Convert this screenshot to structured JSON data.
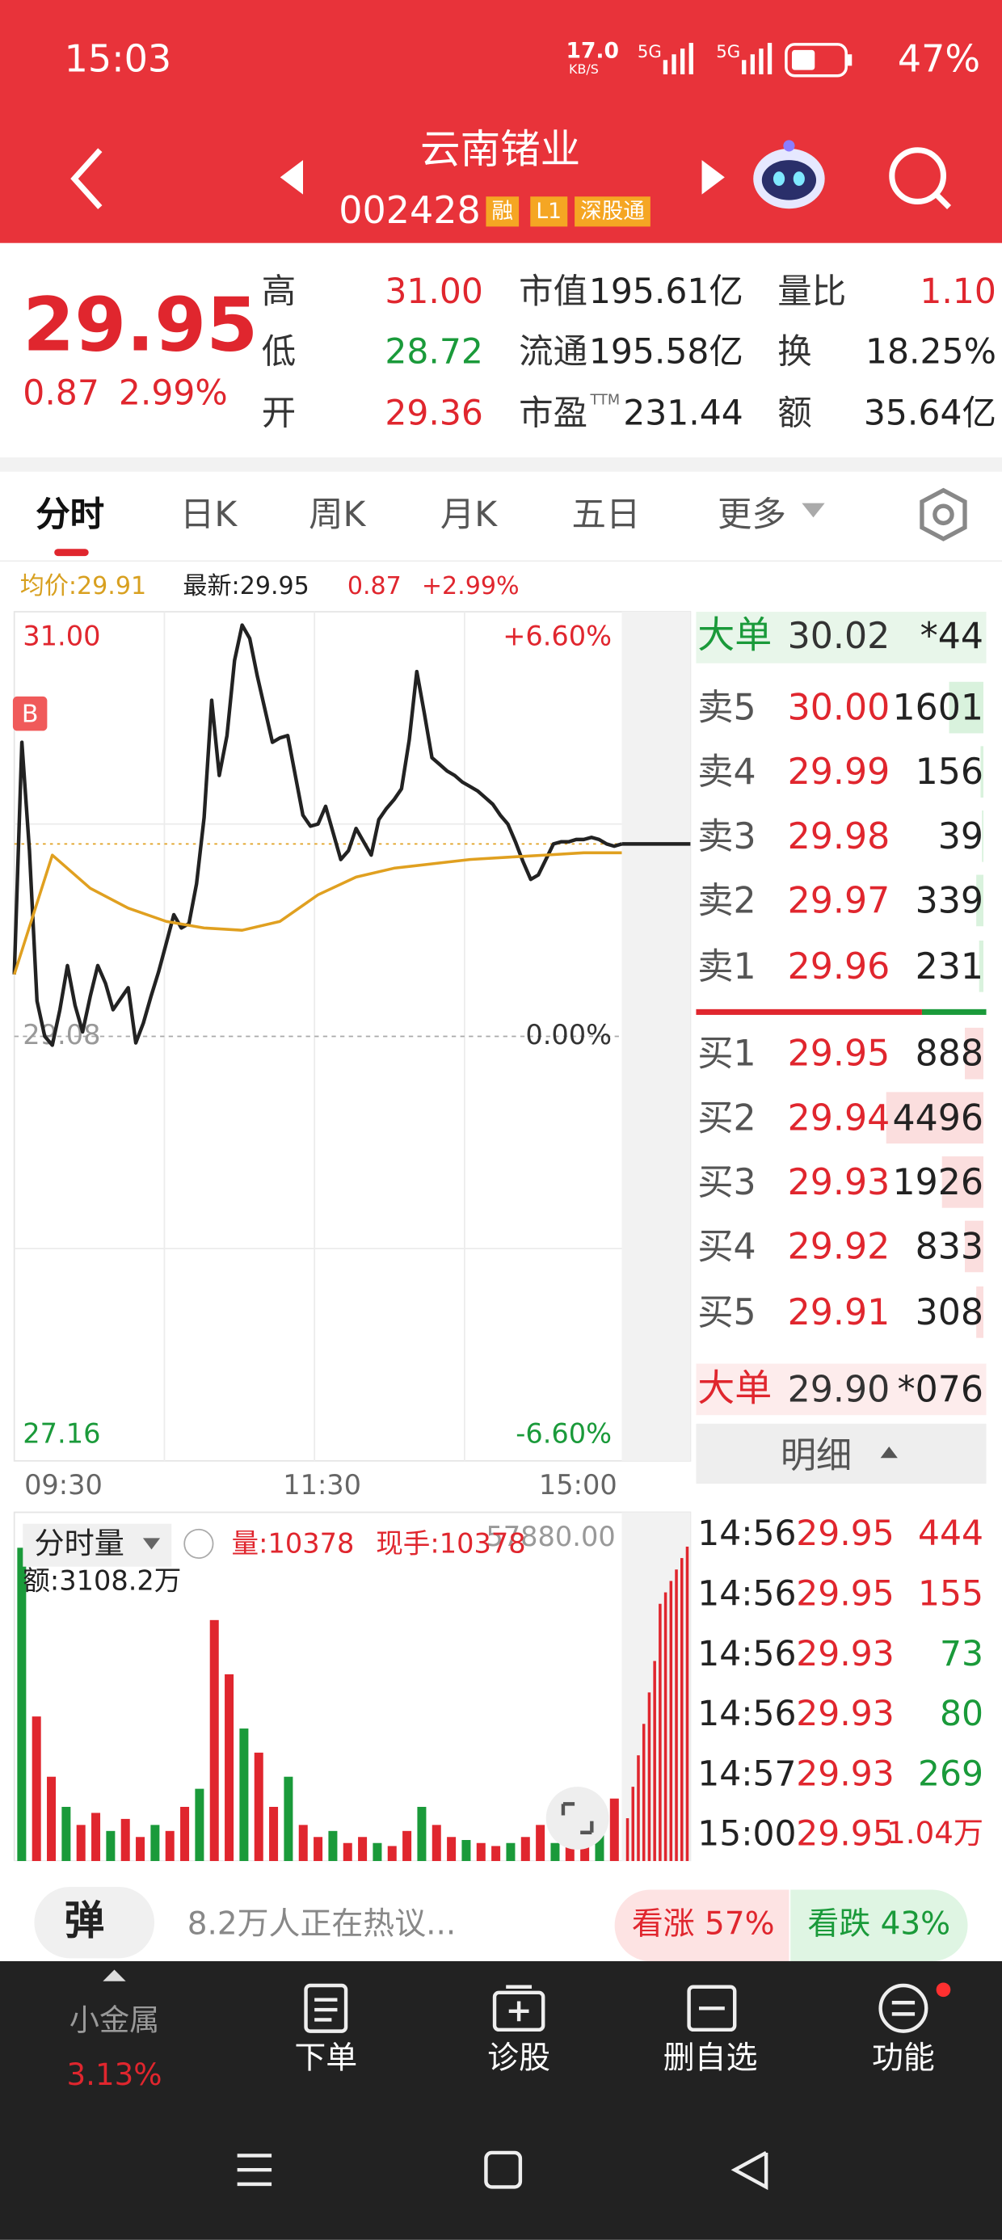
{
  "status_bar": {
    "time": "15:03",
    "net_speed": "17.0",
    "net_unit": "KB/S",
    "signal1": "5G",
    "signal2": "5G",
    "battery": "47%"
  },
  "header": {
    "name": "云南锗业",
    "code": "002428",
    "tags": [
      "融",
      "L1",
      "深股通"
    ]
  },
  "quote": {
    "price": "29.95",
    "change": "0.87",
    "change_pct": "2.99%",
    "stats": [
      {
        "label": "高",
        "value": "31.00"
      },
      {
        "label": "低",
        "value": "28.72"
      },
      {
        "label": "开",
        "value": "29.36"
      },
      {
        "label": "市值",
        "value": "195.61亿"
      },
      {
        "label": "流通",
        "value": "195.58亿"
      },
      {
        "label": "市盈",
        "sup": "TTM",
        "value": "231.44"
      },
      {
        "label": "量比",
        "value": "1.10"
      },
      {
        "label": "换",
        "value": "18.25%"
      },
      {
        "label": "额",
        "value": "35.64亿"
      }
    ]
  },
  "tabs": [
    "分时",
    "日K",
    "周K",
    "月K",
    "五日",
    "更多"
  ],
  "info_line": {
    "avg": "均价:29.91",
    "latest": "最新:29.95",
    "change": "0.87",
    "pct": "+2.99%"
  },
  "chart_data": {
    "type": "line",
    "marker": "B",
    "ylim": [
      27.16,
      31.0
    ],
    "yticks": [
      {
        "value": 31.0,
        "label": "31.00"
      },
      {
        "value": 29.08,
        "label": "29.08"
      },
      {
        "value": 27.16,
        "label": "27.16"
      }
    ],
    "y2lim": [
      -6.6,
      6.6
    ],
    "y2ticks": [
      {
        "value": 6.6,
        "label": "+6.60%"
      },
      {
        "value": 0,
        "label": "0.00%"
      },
      {
        "value": -6.6,
        "label": "-6.60%"
      }
    ],
    "x_labels": [
      "09:30",
      "11:30",
      "15:00"
    ],
    "series": [
      {
        "name": "price",
        "color": "#222222",
        "values": [
          29.36,
          30.41,
          29.92,
          29.24,
          29.08,
          29.04,
          29.2,
          29.4,
          29.22,
          29.1,
          29.26,
          29.4,
          29.32,
          29.2,
          29.25,
          29.3,
          29.05,
          29.14,
          29.26,
          29.37,
          29.5,
          29.63,
          29.57,
          29.59,
          29.77,
          30.07,
          30.6,
          30.26,
          30.44,
          30.78,
          30.94,
          30.88,
          30.71,
          30.56,
          30.41,
          30.43,
          30.44,
          30.26,
          30.08,
          30.03,
          30.04,
          30.12,
          30.0,
          29.88,
          29.92,
          30.02,
          29.96,
          29.9,
          30.06,
          30.11,
          30.15,
          30.2,
          30.42,
          30.73,
          30.54,
          30.34,
          30.31,
          30.28,
          30.26,
          30.23,
          30.21,
          30.19,
          30.16,
          30.13,
          30.08,
          30.04,
          29.96,
          29.87,
          29.79,
          29.81,
          29.88,
          29.95,
          29.96,
          29.96,
          29.97,
          29.97,
          29.98,
          29.97,
          29.95,
          29.94,
          29.95
        ]
      },
      {
        "name": "均价",
        "color": "#e0a020",
        "values": [
          29.36,
          29.9,
          29.75,
          29.66,
          29.6,
          29.57,
          29.56,
          29.6,
          29.72,
          29.8,
          29.84,
          29.86,
          29.88,
          29.89,
          29.9,
          29.91,
          29.91
        ]
      }
    ]
  },
  "volume_data": {
    "type": "bar",
    "title": "分时量",
    "volume": "量:10378",
    "last": "现手:10378",
    "amount": "额:3108.2万",
    "ylim": [
      0,
      57880
    ],
    "yticks": [
      {
        "value": 57880,
        "label": "57880.00"
      }
    ],
    "colors": [
      "#e0262e",
      "#1a9a3a"
    ],
    "values": [
      52000,
      24000,
      14000,
      9000,
      6000,
      8000,
      5000,
      7000,
      4000,
      6000,
      5000,
      9000,
      12000,
      40000,
      31000,
      22000,
      18000,
      9000,
      14000,
      6000,
      4000,
      5000,
      3000,
      4000,
      3000,
      2500,
      5000,
      9000,
      6000,
      4000,
      3500,
      3000,
      2500,
      3000,
      4000,
      6000,
      3000,
      4000,
      8000,
      5000,
      10378
    ]
  },
  "order_book": {
    "big_top": {
      "label": "大单",
      "price": "30.02",
      "volume": "*44"
    },
    "asks": [
      {
        "label": "卖5",
        "price": "30.00",
        "volume": 1601
      },
      {
        "label": "卖4",
        "price": "29.99",
        "volume": 156
      },
      {
        "label": "卖3",
        "price": "29.98",
        "volume": 39
      },
      {
        "label": "卖2",
        "price": "29.97",
        "volume": 339
      },
      {
        "label": "卖1",
        "price": "29.96",
        "volume": 231
      }
    ],
    "bids": [
      {
        "label": "买1",
        "price": "29.95",
        "volume": 888
      },
      {
        "label": "买2",
        "price": "29.94",
        "volume": 4496
      },
      {
        "label": "买3",
        "price": "29.93",
        "volume": 1926
      },
      {
        "label": "买4",
        "price": "29.92",
        "volume": 833
      },
      {
        "label": "买5",
        "price": "29.91",
        "volume": 308
      }
    ],
    "big_bottom": {
      "label": "大单",
      "price": "29.90",
      "volume": "*076"
    },
    "detail_title": "明细",
    "trades": [
      {
        "time": "14:56",
        "price": "29.95",
        "volume": "444"
      },
      {
        "time": "14:56",
        "price": "29.95",
        "volume": "155"
      },
      {
        "time": "14:56",
        "price": "29.93",
        "volume": "73"
      },
      {
        "time": "14:56",
        "price": "29.93",
        "volume": "80"
      },
      {
        "time": "14:57",
        "price": "29.93",
        "volume": "269"
      },
      {
        "time": "15:00",
        "price": "29.95",
        "volume": "1.04万"
      }
    ]
  },
  "bottom": {
    "danmu": "弹",
    "discussion": "8.2万人正在热议...",
    "bull": "看涨 57%",
    "bear": "看跌 43%"
  },
  "nav": [
    {
      "label": "小金属",
      "sub": "3.13%"
    },
    {
      "label": "下单"
    },
    {
      "label": "诊股"
    },
    {
      "label": "删自选"
    },
    {
      "label": "功能"
    }
  ]
}
